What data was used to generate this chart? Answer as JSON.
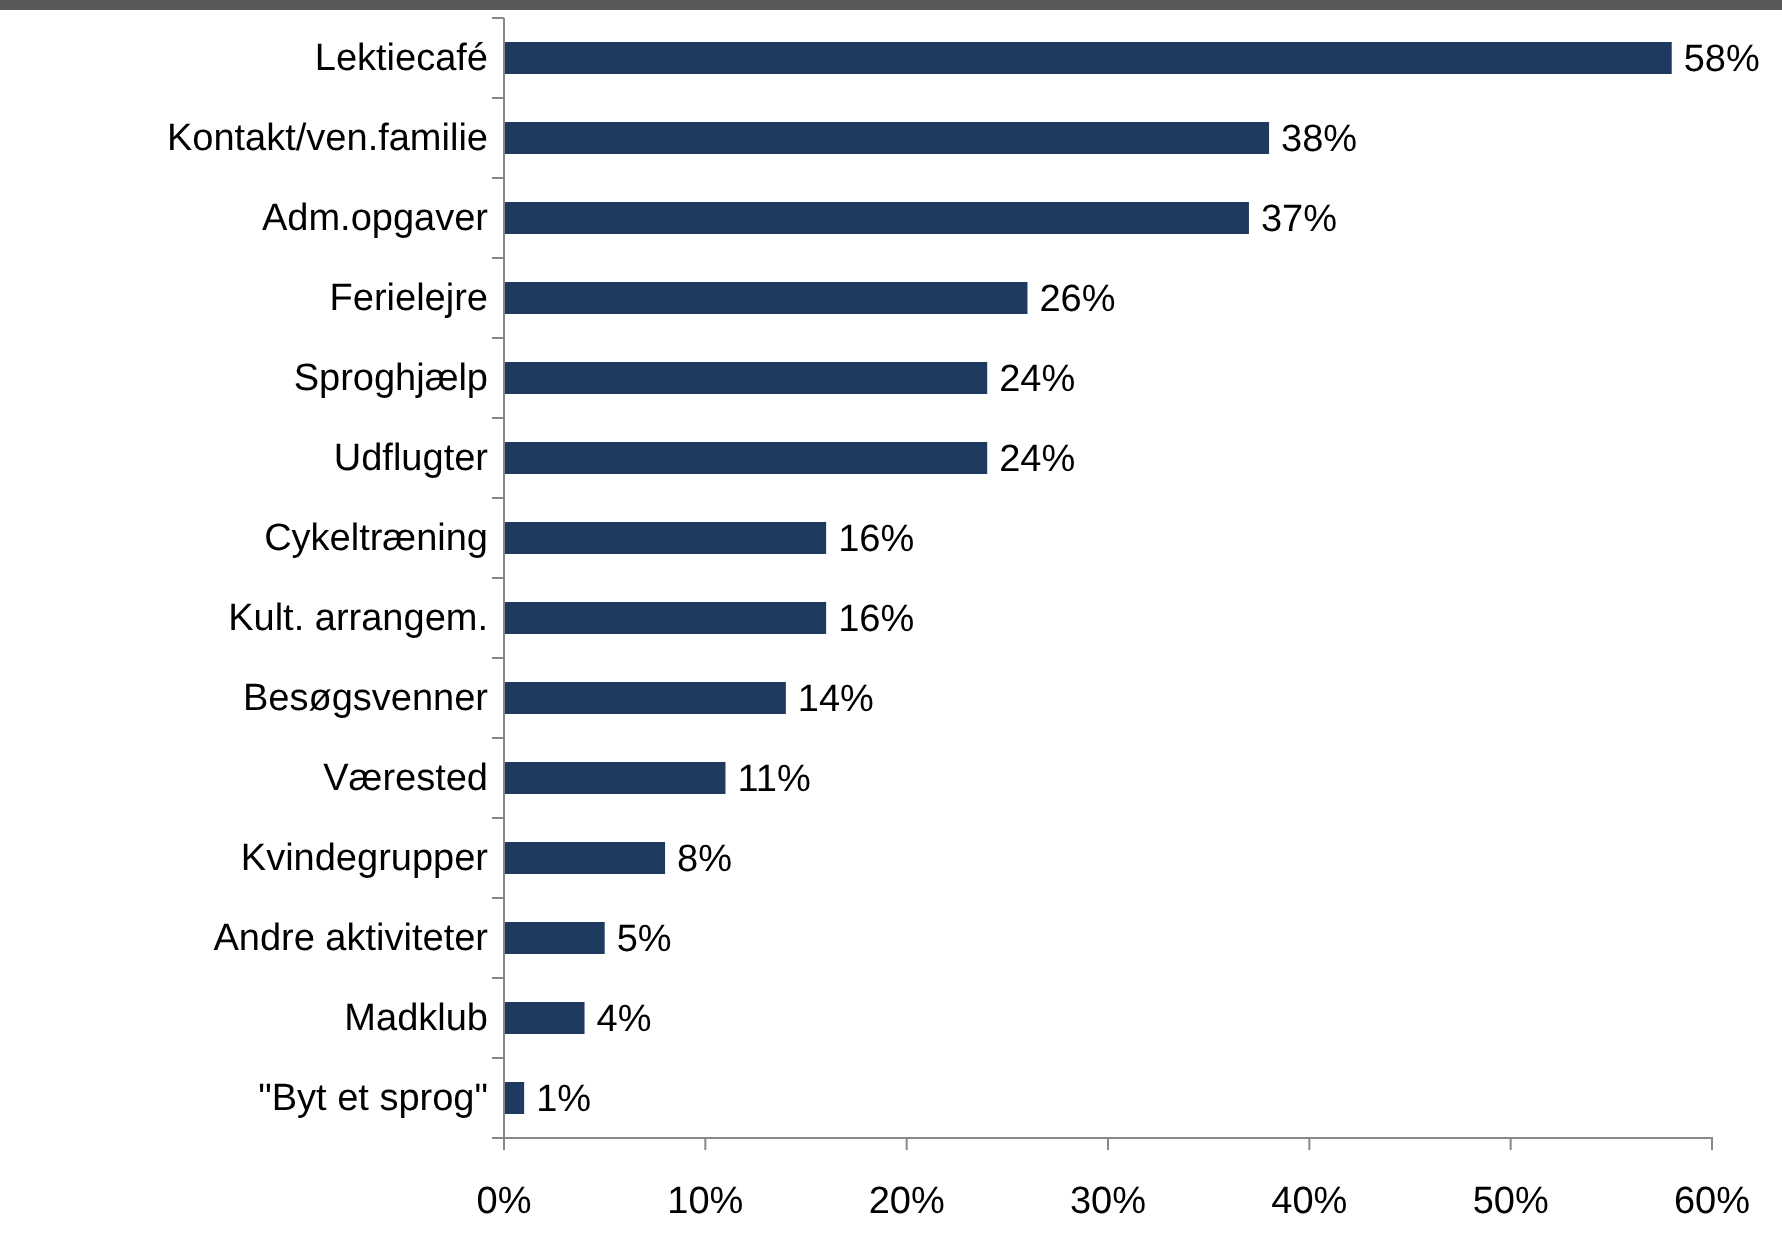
{
  "chart_data": {
    "type": "bar",
    "orientation": "horizontal",
    "categories": [
      "Lektiecafé",
      "Kontakt/ven.familie",
      "Adm.opgaver",
      "Ferielejre",
      "Sproghjælp",
      "Udflugter",
      "Cykeltræning",
      "Kult. arrangem.",
      "Besøgsvenner",
      "Værested",
      "Kvindegrupper",
      "Andre aktiviteter",
      "Madklub",
      "\"Byt et sprog\""
    ],
    "values": [
      58,
      38,
      37,
      26,
      24,
      24,
      16,
      16,
      14,
      11,
      8,
      5,
      4,
      1
    ],
    "value_labels": [
      "58%",
      "38%",
      "37%",
      "26%",
      "24%",
      "24%",
      "16%",
      "16%",
      "14%",
      "11%",
      "8%",
      "5%",
      "4%",
      "1%"
    ],
    "color": "#1f3a60",
    "xlim": [
      0,
      60
    ],
    "xticks": [
      {
        "value": 0,
        "label": "0%"
      },
      {
        "value": 10,
        "label": "10%"
      },
      {
        "value": 20,
        "label": "20%"
      },
      {
        "value": 30,
        "label": "30%"
      },
      {
        "value": 40,
        "label": "40%"
      },
      {
        "value": 50,
        "label": "50%"
      },
      {
        "value": 60,
        "label": "60%"
      }
    ],
    "grid": false
  }
}
